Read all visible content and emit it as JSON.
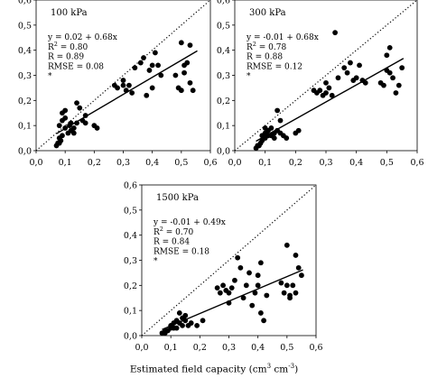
{
  "chart_data": [
    {
      "type": "scatter",
      "title": "100 kPa",
      "xlim": [
        0,
        0.6
      ],
      "ylim": [
        0,
        0.6
      ],
      "xticks": [
        "0,0",
        "0,1",
        "0,2",
        "0,3",
        "0,4",
        "0,5",
        "0,6"
      ],
      "yticks": [
        "0,0",
        "0,1",
        "0,2",
        "0,3",
        "0,4",
        "0,5",
        "0,6"
      ],
      "annotations": [
        "y = 0.02 + 0.68x",
        "R",
        "= 0.80",
        "R = 0.89",
        "RMSE = 0.08",
        "*"
      ],
      "fit": {
        "intercept": 0.02,
        "slope": 0.68
      },
      "reference_line": "1:1",
      "points": [
        [
          0.07,
          0.02
        ],
        [
          0.075,
          0.03
        ],
        [
          0.08,
          0.03
        ],
        [
          0.085,
          0.04
        ],
        [
          0.08,
          0.05
        ],
        [
          0.09,
          0.06
        ],
        [
          0.08,
          0.1
        ],
        [
          0.09,
          0.12
        ],
        [
          0.09,
          0.15
        ],
        [
          0.1,
          0.16
        ],
        [
          0.1,
          0.13
        ],
        [
          0.1,
          0.09
        ],
        [
          0.11,
          0.07
        ],
        [
          0.115,
          0.1
        ],
        [
          0.12,
          0.08
        ],
        [
          0.12,
          0.11
        ],
        [
          0.13,
          0.09
        ],
        [
          0.13,
          0.07
        ],
        [
          0.14,
          0.11
        ],
        [
          0.14,
          0.19
        ],
        [
          0.15,
          0.17
        ],
        [
          0.16,
          0.12
        ],
        [
          0.17,
          0.11
        ],
        [
          0.17,
          0.14
        ],
        [
          0.2,
          0.1
        ],
        [
          0.21,
          0.09
        ],
        [
          0.27,
          0.26
        ],
        [
          0.28,
          0.25
        ],
        [
          0.3,
          0.26
        ],
        [
          0.3,
          0.28
        ],
        [
          0.31,
          0.24
        ],
        [
          0.32,
          0.26
        ],
        [
          0.33,
          0.23
        ],
        [
          0.34,
          0.33
        ],
        [
          0.36,
          0.35
        ],
        [
          0.37,
          0.37
        ],
        [
          0.38,
          0.22
        ],
        [
          0.39,
          0.32
        ],
        [
          0.4,
          0.25
        ],
        [
          0.4,
          0.34
        ],
        [
          0.41,
          0.39
        ],
        [
          0.42,
          0.34
        ],
        [
          0.43,
          0.3
        ],
        [
          0.48,
          0.3
        ],
        [
          0.49,
          0.25
        ],
        [
          0.5,
          0.24
        ],
        [
          0.5,
          0.43
        ],
        [
          0.51,
          0.31
        ],
        [
          0.51,
          0.34
        ],
        [
          0.52,
          0.35
        ],
        [
          0.53,
          0.27
        ],
        [
          0.54,
          0.24
        ],
        [
          0.53,
          0.42
        ]
      ]
    },
    {
      "type": "scatter",
      "title": "300 kPa",
      "xlim": [
        0,
        0.6
      ],
      "ylim": [
        0,
        0.6
      ],
      "xticks": [
        "0,0",
        "0,1",
        "0,2",
        "0,3",
        "0,4",
        "0,5",
        "0,6"
      ],
      "yticks": [
        "0,0",
        "0,1",
        "0,2",
        "0,3",
        "0,4",
        "0,5",
        "0,6"
      ],
      "annotations": [
        "y = -0.01 + 0.68x",
        "R",
        "= 0.78",
        "R = 0.88",
        "RMSE = 0.12",
        "*"
      ],
      "fit": {
        "intercept": -0.01,
        "slope": 0.68
      },
      "reference_line": "1:1",
      "points": [
        [
          0.07,
          0.01
        ],
        [
          0.075,
          0.02
        ],
        [
          0.08,
          0.02
        ],
        [
          0.085,
          0.03
        ],
        [
          0.09,
          0.04
        ],
        [
          0.09,
          0.06
        ],
        [
          0.1,
          0.07
        ],
        [
          0.1,
          0.09
        ],
        [
          0.1,
          0.05
        ],
        [
          0.11,
          0.06
        ],
        [
          0.11,
          0.08
        ],
        [
          0.12,
          0.06
        ],
        [
          0.12,
          0.09
        ],
        [
          0.13,
          0.07
        ],
        [
          0.13,
          0.05
        ],
        [
          0.14,
          0.08
        ],
        [
          0.14,
          0.16
        ],
        [
          0.15,
          0.07
        ],
        [
          0.15,
          0.12
        ],
        [
          0.16,
          0.06
        ],
        [
          0.17,
          0.05
        ],
        [
          0.2,
          0.07
        ],
        [
          0.21,
          0.08
        ],
        [
          0.26,
          0.24
        ],
        [
          0.27,
          0.23
        ],
        [
          0.28,
          0.24
        ],
        [
          0.29,
          0.22
        ],
        [
          0.3,
          0.27
        ],
        [
          0.3,
          0.23
        ],
        [
          0.31,
          0.25
        ],
        [
          0.32,
          0.22
        ],
        [
          0.33,
          0.47
        ],
        [
          0.34,
          0.29
        ],
        [
          0.36,
          0.33
        ],
        [
          0.37,
          0.31
        ],
        [
          0.38,
          0.35
        ],
        [
          0.39,
          0.28
        ],
        [
          0.4,
          0.29
        ],
        [
          0.41,
          0.34
        ],
        [
          0.42,
          0.28
        ],
        [
          0.43,
          0.27
        ],
        [
          0.48,
          0.27
        ],
        [
          0.49,
          0.26
        ],
        [
          0.5,
          0.32
        ],
        [
          0.5,
          0.38
        ],
        [
          0.51,
          0.31
        ],
        [
          0.51,
          0.41
        ],
        [
          0.52,
          0.29
        ],
        [
          0.53,
          0.23
        ],
        [
          0.54,
          0.26
        ],
        [
          0.55,
          0.33
        ]
      ]
    },
    {
      "type": "scatter",
      "title": "1500 kPa",
      "xlim": [
        0,
        0.6
      ],
      "ylim": [
        0,
        0.6
      ],
      "xticks": [
        "0,0",
        "0,1",
        "0,2",
        "0,3",
        "0,4",
        "0,5",
        "0,6"
      ],
      "yticks": [
        "0,0",
        "0,1",
        "0,2",
        "0,3",
        "0,4",
        "0,5",
        "0,6"
      ],
      "annotations": [
        "y = -0.01 + 0.49x",
        "R",
        "= 0.70",
        "R = 0.84",
        "RMSE = 0.18",
        "*"
      ],
      "fit": {
        "intercept": -0.01,
        "slope": 0.49
      },
      "reference_line": "1:1",
      "points": [
        [
          0.07,
          0.01
        ],
        [
          0.08,
          0.02
        ],
        [
          0.08,
          0.01
        ],
        [
          0.09,
          0.02
        ],
        [
          0.1,
          0.03
        ],
        [
          0.1,
          0.04
        ],
        [
          0.11,
          0.03
        ],
        [
          0.11,
          0.05
        ],
        [
          0.12,
          0.06
        ],
        [
          0.12,
          0.03
        ],
        [
          0.13,
          0.05
        ],
        [
          0.13,
          0.09
        ],
        [
          0.14,
          0.04
        ],
        [
          0.14,
          0.07
        ],
        [
          0.15,
          0.06
        ],
        [
          0.15,
          0.08
        ],
        [
          0.16,
          0.04
        ],
        [
          0.17,
          0.05
        ],
        [
          0.19,
          0.04
        ],
        [
          0.21,
          0.06
        ],
        [
          0.26,
          0.19
        ],
        [
          0.27,
          0.17
        ],
        [
          0.28,
          0.2
        ],
        [
          0.29,
          0.18
        ],
        [
          0.3,
          0.13
        ],
        [
          0.3,
          0.17
        ],
        [
          0.31,
          0.19
        ],
        [
          0.32,
          0.22
        ],
        [
          0.33,
          0.31
        ],
        [
          0.34,
          0.27
        ],
        [
          0.35,
          0.15
        ],
        [
          0.36,
          0.2
        ],
        [
          0.37,
          0.25
        ],
        [
          0.38,
          0.12
        ],
        [
          0.39,
          0.17
        ],
        [
          0.4,
          0.24
        ],
        [
          0.4,
          0.2
        ],
        [
          0.41,
          0.09
        ],
        [
          0.41,
          0.29
        ],
        [
          0.42,
          0.06
        ],
        [
          0.43,
          0.16
        ],
        [
          0.48,
          0.21
        ],
        [
          0.49,
          0.17
        ],
        [
          0.5,
          0.2
        ],
        [
          0.5,
          0.36
        ],
        [
          0.51,
          0.16
        ],
        [
          0.51,
          0.15
        ],
        [
          0.52,
          0.2
        ],
        [
          0.53,
          0.17
        ],
        [
          0.53,
          0.32
        ],
        [
          0.54,
          0.27
        ],
        [
          0.55,
          0.24
        ]
      ]
    }
  ],
  "figure": {
    "xlabel_main": "Estimated field capacity (cm",
    "xlabel_sup1": "3",
    "xlabel_mid": " cm",
    "xlabel_sup2": "-3",
    "xlabel_end": ")",
    "r2_sup": "2"
  }
}
